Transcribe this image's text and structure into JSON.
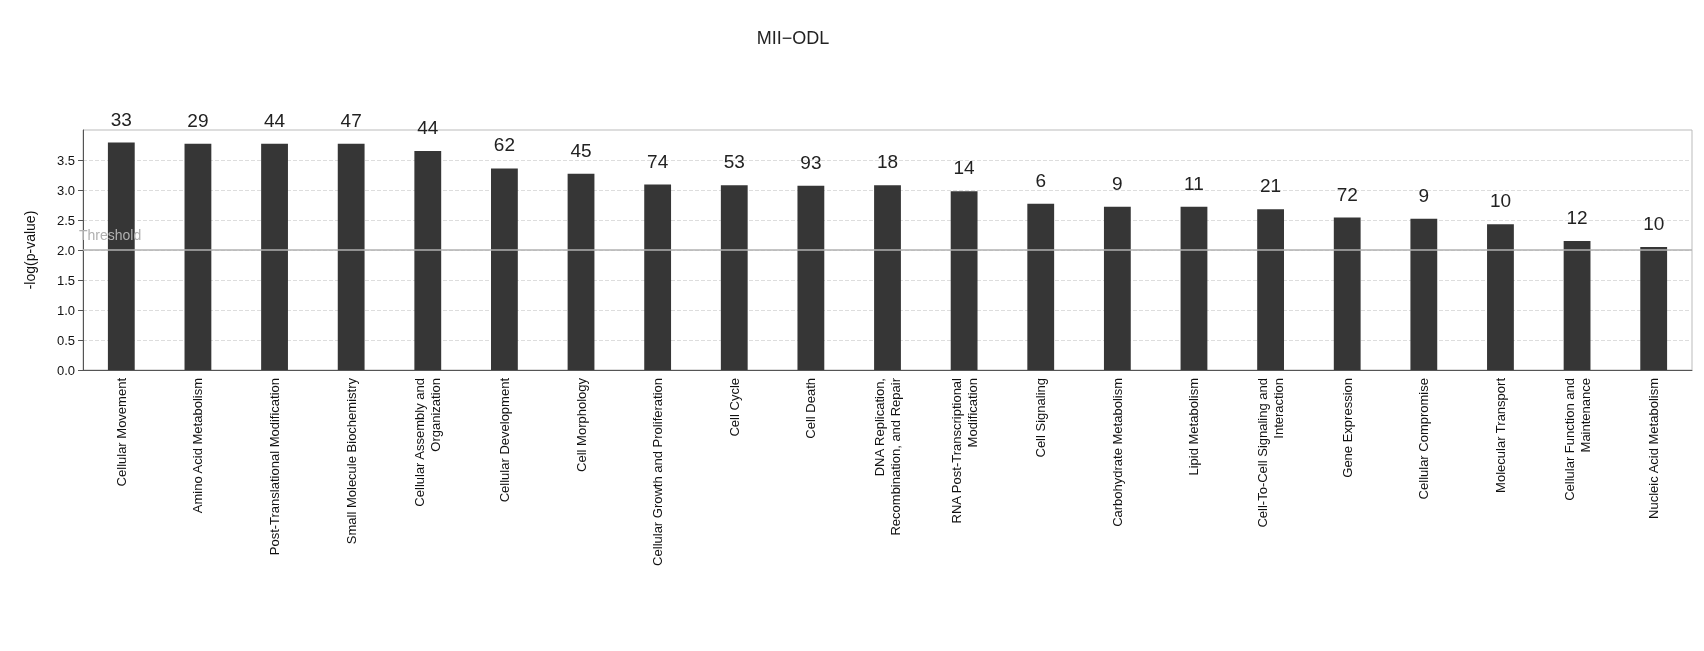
{
  "chart_data": {
    "type": "bar",
    "title": "MII−ODL",
    "ylabel": "-log(p-value)",
    "categories": [
      "Cellular Movement",
      "Amino Acid Metabolism",
      "Post-Translational Modification",
      "Small Molecule Biochemistry",
      "Cellular Assembly and\nOrganization",
      "Cellular Development",
      "Cell Morphology",
      "Cellular Growth and Proliferation",
      "Cell Cycle",
      "Cell Death",
      "DNA Replication,\nRecombination, and Repair",
      "RNA Post-Transcriptional\nModification",
      "Cell Signaling",
      "Carbohydrate Metabolism",
      "Lipid Metabolism",
      "Cell-To-Cell Signaling and\nInteraction",
      "Gene Expression",
      "Cellular Compromise",
      "Molecular Transport",
      "Cellular Function and\nMaintenance",
      "Nucleic Acid Metabolism"
    ],
    "values": [
      3.79,
      3.77,
      3.77,
      3.77,
      3.65,
      3.36,
      3.27,
      3.09,
      3.08,
      3.07,
      3.08,
      2.98,
      2.77,
      2.72,
      2.72,
      2.68,
      2.54,
      2.52,
      2.43,
      2.15,
      2.05
    ],
    "annotations": [
      {
        "text": "33",
        "x": "Cellular Movement",
        "y": 3.79
      },
      {
        "text": "29",
        "x": "Amino Acid Metabolism",
        "y": 3.77
      },
      {
        "text": "44",
        "x": "Post-Translational Modification",
        "y": 3.77
      },
      {
        "text": "47",
        "x": "Small Molecule Biochemistry",
        "y": 3.77
      },
      {
        "text": "44",
        "x": "Cellular Assembly and\nOrganization",
        "y": 3.65
      },
      {
        "text": "62",
        "x": "Cellular Development",
        "y": 3.36
      },
      {
        "text": "45",
        "x": "Cell Morphology",
        "y": 3.27
      },
      {
        "text": "74",
        "x": "Cellular Growth and Proliferation",
        "y": 3.09
      },
      {
        "text": "53",
        "x": "Cell Cycle",
        "y": 3.08
      },
      {
        "text": "93",
        "x": "Cell Death",
        "y": 3.07
      },
      {
        "text": "18",
        "x": "DNA Replication,\nRecombination, and Repair",
        "y": 3.08
      },
      {
        "text": "14",
        "x": "RNA Post-Transcriptional\nModification",
        "y": 2.98
      },
      {
        "text": "6",
        "x": "Cell Signaling",
        "y": 2.77
      },
      {
        "text": "9",
        "x": "Carbohydrate Metabolism",
        "y": 2.72
      },
      {
        "text": "11",
        "x": "Lipid Metabolism",
        "y": 2.72
      },
      {
        "text": "21",
        "x": "Cell-To-Cell Signaling and\nInteraction",
        "y": 2.68
      },
      {
        "text": "72",
        "x": "Gene Expression",
        "y": 2.54
      },
      {
        "text": "9",
        "x": "Cellular Compromise",
        "y": 2.52
      },
      {
        "text": "10",
        "x": "Molecular Transport",
        "y": 2.43
      },
      {
        "text": "12",
        "x": "Cellular Function and\nMaintenance",
        "y": 2.15
      },
      {
        "text": "10",
        "x": "Nucleic Acid Metabolism",
        "y": 2.05
      }
    ],
    "color": "#363636",
    "ylim": [
      0,
      4
    ],
    "yticks": [
      {
        "value": 0,
        "label": "0.0"
      },
      0.5,
      {
        "value": 1,
        "label": "1.0"
      },
      1.5,
      {
        "value": 2,
        "label": "2.0"
      },
      2.5,
      {
        "value": 3,
        "label": "3.0"
      },
      3.5
    ],
    "grid": "y",
    "ref_lines": [
      {
        "axis": "y",
        "value": 2.0,
        "label": "Threshold",
        "color": "#b0b0b0"
      }
    ]
  }
}
